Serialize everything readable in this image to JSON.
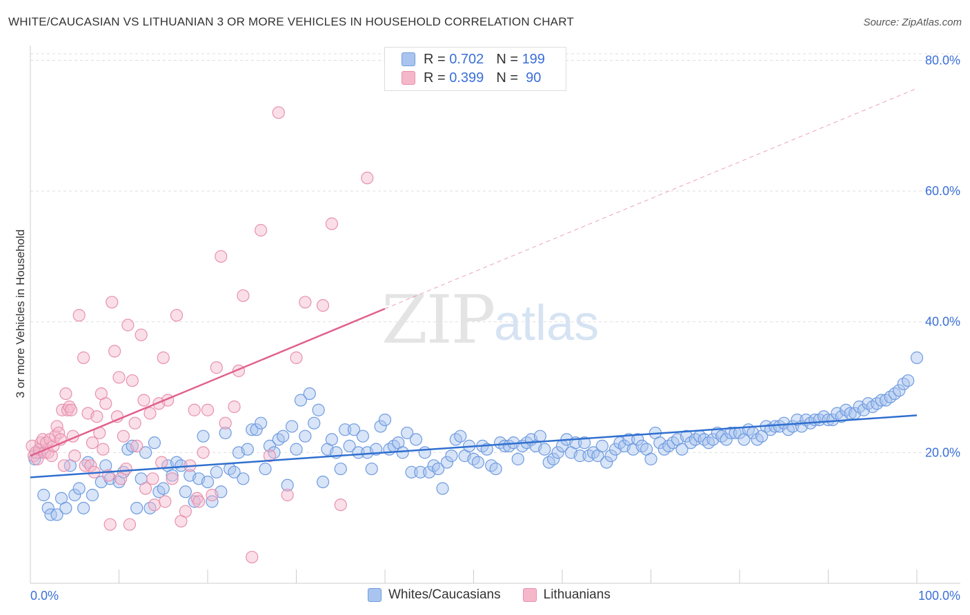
{
  "title": "WHITE/CAUCASIAN VS LITHUANIAN 3 OR MORE VEHICLES IN HOUSEHOLD CORRELATION CHART",
  "source": "Source: ZipAtlas.com",
  "watermark": {
    "zip": "ZIP",
    "atlas": "atlas"
  },
  "legend": {
    "r_label": "R =",
    "n_label": "N =",
    "rows": [
      {
        "r": "0.702",
        "n": "199"
      },
      {
        "r": "0.399",
        "n": " 90"
      }
    ]
  },
  "bottom_legend": [
    "Whites/Caucasians",
    "Lithuanians"
  ],
  "colors": {
    "blue_fill": "#a9c4ee",
    "blue_stroke": "#6e9be0",
    "blue_line": "#2f6fcf",
    "pink_fill": "#f5b8cb",
    "pink_stroke": "#e890ac",
    "pink_line": "#e0608e",
    "tick_label": "#3a6fd8",
    "grid": "#dddddd"
  },
  "chart_data": {
    "type": "scatter",
    "xlabel": "",
    "ylabel": "3 or more Vehicles in Household",
    "x_tick_labels": [
      "0.0%",
      "100.0%"
    ],
    "y_tick_labels": [
      "20.0%",
      "40.0%",
      "60.0%",
      "80.0%"
    ],
    "xlim": [
      0,
      100
    ],
    "ylim": [
      0,
      81
    ],
    "grid": true,
    "legend_position": "top-center",
    "series": [
      {
        "name": "Whites/Caucasians",
        "r": 0.702,
        "n": 199,
        "trend": {
          "x": [
            0,
            100
          ],
          "y": [
            16.2,
            25.7
          ]
        },
        "points": [
          [
            0.5,
            19
          ],
          [
            1,
            20
          ],
          [
            1.5,
            13.5
          ],
          [
            2,
            11.5
          ],
          [
            2.3,
            10.5
          ],
          [
            3,
            10.5
          ],
          [
            3.5,
            13
          ],
          [
            4,
            11.5
          ],
          [
            4.5,
            18
          ],
          [
            5,
            13.5
          ],
          [
            5.5,
            14.5
          ],
          [
            6,
            11.5
          ],
          [
            6.5,
            18.5
          ],
          [
            7,
            13.5
          ],
          [
            8,
            15.5
          ],
          [
            8.5,
            18
          ],
          [
            9,
            16
          ],
          [
            10,
            15.5
          ],
          [
            10.5,
            17
          ],
          [
            11,
            20.5
          ],
          [
            11.5,
            21
          ],
          [
            12,
            11.5
          ],
          [
            12.5,
            16
          ],
          [
            13,
            20
          ],
          [
            13.5,
            11.5
          ],
          [
            14,
            21.5
          ],
          [
            14.5,
            14
          ],
          [
            15,
            14.5
          ],
          [
            15.5,
            18
          ],
          [
            16,
            16.5
          ],
          [
            16.5,
            18.5
          ],
          [
            17,
            18
          ],
          [
            17.5,
            14
          ],
          [
            18,
            16.5
          ],
          [
            18.5,
            12.5
          ],
          [
            19,
            16
          ],
          [
            19.5,
            22.5
          ],
          [
            20,
            15.5
          ],
          [
            20.5,
            12.5
          ],
          [
            21,
            17
          ],
          [
            21.5,
            14
          ],
          [
            22,
            23
          ],
          [
            22.5,
            17.5
          ],
          [
            23,
            17
          ],
          [
            23.5,
            20
          ],
          [
            24,
            16
          ],
          [
            24.5,
            20.5
          ],
          [
            25,
            23.5
          ],
          [
            25.5,
            23.5
          ],
          [
            26,
            24.5
          ],
          [
            26.5,
            17.5
          ],
          [
            27,
            21
          ],
          [
            27.5,
            20
          ],
          [
            28,
            22
          ],
          [
            28.5,
            22.5
          ],
          [
            29,
            15
          ],
          [
            29.5,
            24
          ],
          [
            30,
            20.5
          ],
          [
            30.5,
            28
          ],
          [
            31,
            22.5
          ],
          [
            31.5,
            29
          ],
          [
            32,
            24.5
          ],
          [
            32.5,
            26.5
          ],
          [
            33,
            15.5
          ],
          [
            33.5,
            20.5
          ],
          [
            34,
            22
          ],
          [
            34.5,
            20
          ],
          [
            35,
            17.5
          ],
          [
            35.5,
            23.5
          ],
          [
            36,
            21
          ],
          [
            36.5,
            23.5
          ],
          [
            37,
            20
          ],
          [
            37.5,
            22.5
          ],
          [
            38,
            20
          ],
          [
            38.5,
            17.5
          ],
          [
            39,
            20.5
          ],
          [
            39.5,
            24
          ],
          [
            40,
            25
          ],
          [
            40.5,
            20.5
          ],
          [
            41,
            21
          ],
          [
            41.5,
            21.5
          ],
          [
            42,
            20
          ],
          [
            42.5,
            23
          ],
          [
            43,
            17
          ],
          [
            43.5,
            22
          ],
          [
            44,
            17
          ],
          [
            44.5,
            20
          ],
          [
            45,
            17
          ],
          [
            45.5,
            18
          ],
          [
            46,
            17.5
          ],
          [
            46.5,
            14.5
          ],
          [
            47,
            18.5
          ],
          [
            47.5,
            19.5
          ],
          [
            48,
            22
          ],
          [
            48.5,
            22.5
          ],
          [
            49,
            19.5
          ],
          [
            49.5,
            21
          ],
          [
            50,
            19
          ],
          [
            50.5,
            18.5
          ],
          [
            51,
            21
          ],
          [
            51.5,
            20.5
          ],
          [
            52,
            18
          ],
          [
            52.5,
            17.5
          ],
          [
            53,
            21.5
          ],
          [
            53.5,
            21
          ],
          [
            54,
            21
          ],
          [
            54.5,
            21.5
          ],
          [
            55,
            19
          ],
          [
            55.5,
            21
          ],
          [
            56,
            21.5
          ],
          [
            56.5,
            22
          ],
          [
            57,
            21
          ],
          [
            57.5,
            22.5
          ],
          [
            58,
            20.5
          ],
          [
            58.5,
            18.5
          ],
          [
            59,
            19
          ],
          [
            59.5,
            20
          ],
          [
            60,
            21
          ],
          [
            60.5,
            22
          ],
          [
            61,
            20
          ],
          [
            61.5,
            21.5
          ],
          [
            62,
            19.5
          ],
          [
            62.5,
            21.5
          ],
          [
            63,
            19.5
          ],
          [
            63.5,
            20
          ],
          [
            64,
            19.5
          ],
          [
            64.5,
            21
          ],
          [
            65,
            18.5
          ],
          [
            65.5,
            19.5
          ],
          [
            66,
            20.5
          ],
          [
            66.5,
            21.5
          ],
          [
            67,
            21
          ],
          [
            67.5,
            22
          ],
          [
            68,
            20.5
          ],
          [
            68.5,
            22
          ],
          [
            69,
            21
          ],
          [
            69.5,
            20.5
          ],
          [
            70,
            19
          ],
          [
            70.5,
            23
          ],
          [
            71,
            21.5
          ],
          [
            71.5,
            20.5
          ],
          [
            72,
            21
          ],
          [
            72.5,
            21.5
          ],
          [
            73,
            22
          ],
          [
            73.5,
            20.5
          ],
          [
            74,
            22.5
          ],
          [
            74.5,
            21.5
          ],
          [
            75,
            22
          ],
          [
            75.5,
            22.5
          ],
          [
            76,
            22
          ],
          [
            76.5,
            21.5
          ],
          [
            77,
            22
          ],
          [
            77.5,
            23
          ],
          [
            78,
            22.5
          ],
          [
            78.5,
            22
          ],
          [
            79,
            23
          ],
          [
            79.5,
            23
          ],
          [
            80,
            23
          ],
          [
            80.5,
            22
          ],
          [
            81,
            23.5
          ],
          [
            81.5,
            23
          ],
          [
            82,
            22
          ],
          [
            82.5,
            22.5
          ],
          [
            83,
            24
          ],
          [
            83.5,
            23.5
          ],
          [
            84,
            24
          ],
          [
            84.5,
            24
          ],
          [
            85,
            24.5
          ],
          [
            85.5,
            23.5
          ],
          [
            86,
            24
          ],
          [
            86.5,
            25
          ],
          [
            87,
            24
          ],
          [
            87.5,
            25
          ],
          [
            88,
            24.5
          ],
          [
            88.5,
            25
          ],
          [
            89,
            25
          ],
          [
            89.5,
            25.5
          ],
          [
            90,
            25
          ],
          [
            90.5,
            25
          ],
          [
            91,
            26
          ],
          [
            91.5,
            25.5
          ],
          [
            92,
            26.5
          ],
          [
            92.5,
            26
          ],
          [
            93,
            26
          ],
          [
            93.5,
            27
          ],
          [
            94,
            26.5
          ],
          [
            94.5,
            27.5
          ],
          [
            95,
            27
          ],
          [
            95.5,
            27.5
          ],
          [
            96,
            28
          ],
          [
            96.5,
            28
          ],
          [
            97,
            28.5
          ],
          [
            97.5,
            29
          ],
          [
            98,
            29.5
          ],
          [
            98.5,
            30.5
          ],
          [
            99,
            31
          ],
          [
            100,
            34.5
          ]
        ]
      },
      {
        "name": "Lithuanians",
        "r": 0.399,
        "n": 90,
        "trend": {
          "x": [
            0,
            40
          ],
          "y": [
            19.5,
            42
          ]
        },
        "trend_extended": {
          "x": [
            40,
            100
          ],
          "y": [
            42,
            75.7
          ]
        },
        "points": [
          [
            0.2,
            21
          ],
          [
            0.4,
            19.5
          ],
          [
            0.6,
            20
          ],
          [
            0.8,
            19
          ],
          [
            1,
            20.5
          ],
          [
            1.2,
            21.5
          ],
          [
            1.4,
            22
          ],
          [
            1.6,
            20
          ],
          [
            1.8,
            21.5
          ],
          [
            2,
            20
          ],
          [
            2.2,
            22
          ],
          [
            2.4,
            19.5
          ],
          [
            2.6,
            21
          ],
          [
            2.8,
            22.5
          ],
          [
            3,
            24
          ],
          [
            3.2,
            23
          ],
          [
            3.4,
            22
          ],
          [
            3.6,
            26.5
          ],
          [
            3.8,
            18
          ],
          [
            4,
            29
          ],
          [
            4.2,
            26.5
          ],
          [
            4.4,
            27
          ],
          [
            4.6,
            26.5
          ],
          [
            4.8,
            22.5
          ],
          [
            5,
            19.5
          ],
          [
            5.5,
            41
          ],
          [
            6,
            34.5
          ],
          [
            6.2,
            18
          ],
          [
            6.5,
            26
          ],
          [
            6.8,
            18
          ],
          [
            7,
            21.5
          ],
          [
            7.2,
            17
          ],
          [
            7.5,
            25.5
          ],
          [
            7.8,
            23
          ],
          [
            8,
            29
          ],
          [
            8.2,
            20.5
          ],
          [
            8.5,
            27.5
          ],
          [
            8.8,
            16.5
          ],
          [
            9,
            9
          ],
          [
            9.2,
            43
          ],
          [
            9.5,
            35.5
          ],
          [
            9.8,
            25.5
          ],
          [
            10,
            31.5
          ],
          [
            10.2,
            16
          ],
          [
            10.5,
            22.5
          ],
          [
            10.8,
            17.5
          ],
          [
            11,
            39.5
          ],
          [
            11.2,
            9
          ],
          [
            11.5,
            31
          ],
          [
            11.8,
            24.5
          ],
          [
            12,
            21
          ],
          [
            12.5,
            38
          ],
          [
            12.8,
            28
          ],
          [
            13,
            14.5
          ],
          [
            13.5,
            26
          ],
          [
            13.8,
            16
          ],
          [
            14,
            12
          ],
          [
            14.5,
            27.5
          ],
          [
            14.8,
            18.5
          ],
          [
            15,
            34.5
          ],
          [
            15.2,
            12.5
          ],
          [
            15.5,
            28
          ],
          [
            16,
            16
          ],
          [
            16.5,
            41
          ],
          [
            17,
            9.5
          ],
          [
            17.5,
            11
          ],
          [
            18,
            18
          ],
          [
            18.5,
            26.5
          ],
          [
            18.8,
            13
          ],
          [
            19,
            12.5
          ],
          [
            19.5,
            20
          ],
          [
            20,
            26.5
          ],
          [
            20.5,
            13.5
          ],
          [
            21,
            33
          ],
          [
            21.5,
            50
          ],
          [
            22,
            24.5
          ],
          [
            23,
            27
          ],
          [
            23.5,
            32.5
          ],
          [
            24,
            44
          ],
          [
            25,
            4
          ],
          [
            26,
            54
          ],
          [
            27,
            19.5
          ],
          [
            28,
            72
          ],
          [
            29,
            13.5
          ],
          [
            30,
            34.5
          ],
          [
            31,
            43
          ],
          [
            33,
            42.5
          ],
          [
            34,
            55
          ],
          [
            35,
            12
          ],
          [
            38,
            62
          ]
        ]
      }
    ]
  }
}
